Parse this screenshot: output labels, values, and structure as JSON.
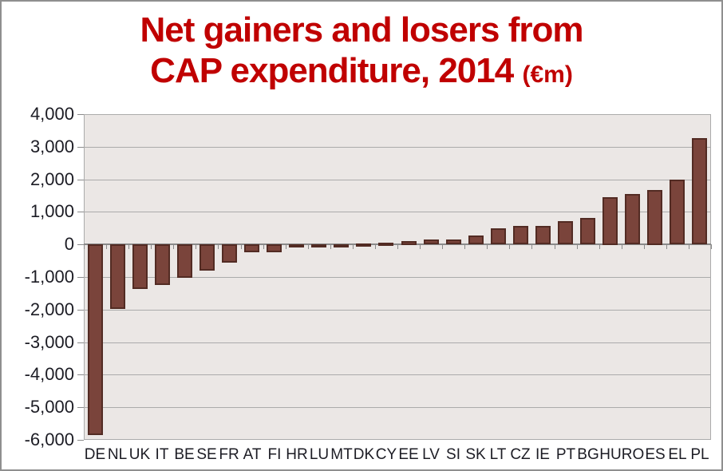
{
  "title": {
    "line1": "Net gainers and losers from",
    "line2": "CAP expenditure, 2014",
    "unit": "(€m)",
    "color": "#c00000"
  },
  "chart_data": {
    "type": "bar",
    "title": "Net gainers and losers from CAP expenditure, 2014 (€m)",
    "xlabel": "",
    "ylabel": "",
    "unit": "€m",
    "categories": [
      "DE",
      "NL",
      "UK",
      "IT",
      "BE",
      "SE",
      "FR",
      "AT",
      "FI",
      "HR",
      "LU",
      "MT",
      "DK",
      "CY",
      "EE",
      "LV",
      "SI",
      "SK",
      "LT",
      "CZ",
      "IE",
      "PT",
      "BG",
      "HU",
      "RO",
      "ES",
      "EL",
      "PL"
    ],
    "values": [
      -5850,
      -1985,
      -1375,
      -1245,
      -1040,
      -810,
      -570,
      -250,
      -235,
      -90,
      -80,
      -40,
      35,
      45,
      115,
      140,
      145,
      280,
      485,
      565,
      575,
      715,
      810,
      1460,
      1540,
      1680,
      1990,
      3260
    ],
    "ylim": [
      -6000,
      4000
    ],
    "ytick_values": [
      4000,
      3000,
      2000,
      1000,
      0,
      -1000,
      -2000,
      -3000,
      -4000,
      -5000,
      -6000
    ],
    "ytick_labels": [
      "4,000",
      "3,000",
      "2,000",
      "1,000",
      "0",
      "-1,000",
      "-2,000",
      "-3,000",
      "-4,000",
      "-5,000",
      "-6,000"
    ],
    "grid": true,
    "legend": false,
    "colors": {
      "bar_fill": "#7a443b",
      "bar_border": "#522b23",
      "plot_bg": "#ebe7e5",
      "gridline": "#ababab",
      "zero_line": "#8a8a8a",
      "tick": "#8a8a8a",
      "axis_text": "#1c1c24",
      "title": "#c00000"
    }
  }
}
